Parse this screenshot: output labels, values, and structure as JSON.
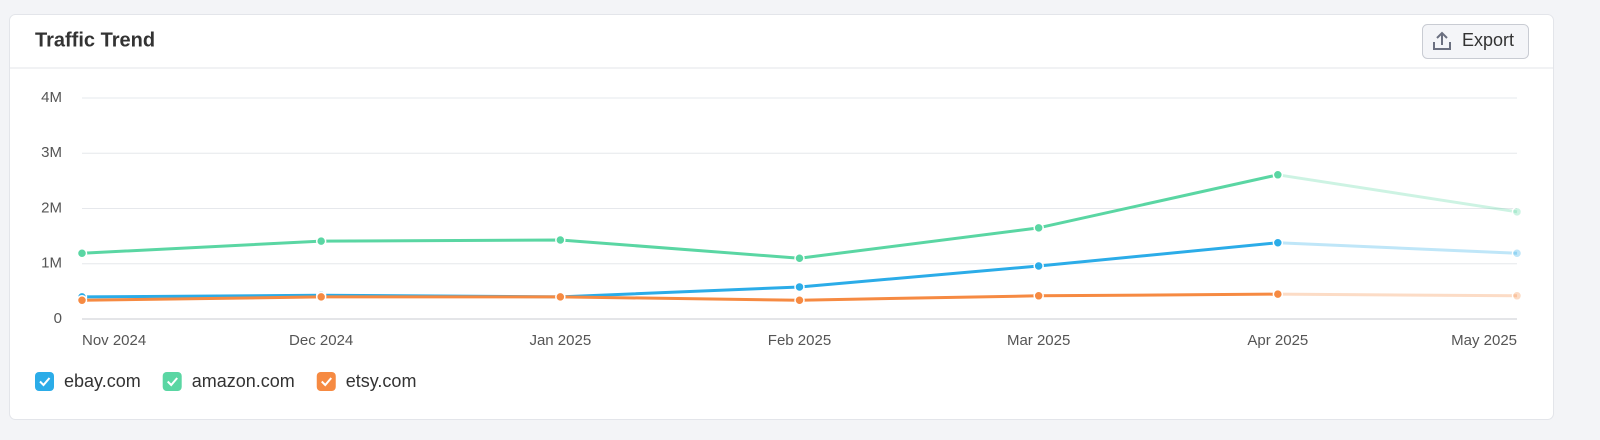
{
  "card": {
    "title": "Traffic Trend",
    "export": "Export"
  },
  "chart_data": {
    "type": "line",
    "categories": [
      "Nov 2024",
      "Dec 2024",
      "Jan 2025",
      "Feb 2025",
      "Mar 2025",
      "Apr 2025",
      "May 2025"
    ],
    "series": [
      {
        "name": "ebay.com",
        "color": "#2bace8",
        "values": [
          400000,
          430000,
          400000,
          580000,
          960000,
          1380000,
          1190000
        ]
      },
      {
        "name": "amazon.com",
        "color": "#5ad6a3",
        "values": [
          1190000,
          1410000,
          1430000,
          1100000,
          1650000,
          2610000,
          1940000
        ]
      },
      {
        "name": "etsy.com",
        "color": "#f68a42",
        "values": [
          340000,
          400000,
          400000,
          340000,
          420000,
          450000,
          420000
        ]
      }
    ],
    "ylim": [
      0,
      4000000
    ],
    "yticks": [
      0,
      {
        "value": 1000000,
        "label": "1M"
      },
      {
        "value": 2000000,
        "label": "2M"
      },
      {
        "value": 3000000,
        "label": "3M"
      },
      {
        "value": 4000000,
        "label": "4M"
      }
    ],
    "grid": true
  }
}
